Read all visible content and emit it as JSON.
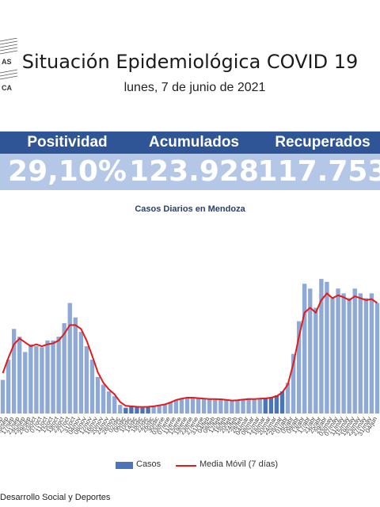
{
  "header": {
    "title": "Situación Epidemiológica COVID 19",
    "date": "lunes, 7 de junio de 2021",
    "logo_text": [
      "AS",
      "CA"
    ]
  },
  "stats": [
    {
      "label": "Positividad",
      "value": "29,10%"
    },
    {
      "label": "Acumulados",
      "value": "123.928"
    },
    {
      "label": "Recuperados",
      "value": "117.753"
    }
  ],
  "colors": {
    "band": "#2f5596",
    "band_light": "#b4c7e7",
    "bars": "#8ea9d6",
    "bars_recent": "#4a76b8",
    "line": "#e31b1b"
  },
  "chart_data": {
    "type": "bar",
    "title": "Casos Diarios en Mendoza",
    "x": [
      "09/sep",
      "13/sep",
      "17/sep",
      "21/sep",
      "25/sep",
      "29/sep",
      "03/oct",
      "07/oct",
      "11/oct",
      "15/oct",
      "19/oct",
      "23/oct",
      "27/oct",
      "31/oct",
      "04/nov",
      "08/nov",
      "12/nov",
      "16/nov",
      "20/nov",
      "24/nov",
      "28/nov",
      "02/dic",
      "06/dic",
      "10/dic",
      "14/dic",
      "18/dic",
      "22/dic",
      "26/dic",
      "30/dic",
      "03/ene",
      "07/ene",
      "11/ene",
      "15/ene",
      "19/ene",
      "23/ene",
      "27/ene",
      "31/ene",
      "04/feb",
      "08/feb",
      "12/feb",
      "16/feb",
      "20/feb",
      "24/feb",
      "28/feb",
      "04/mar",
      "08/mar",
      "12/mar",
      "16/mar",
      "20/mar",
      "24/mar",
      "28/mar",
      "01/abr",
      "05/abr",
      "09/abr",
      "13/abr",
      "17/abr",
      "21/abr",
      "25/abr",
      "29/abr",
      "03/may",
      "07/may",
      "11/may",
      "15/may",
      "19/may",
      "23/may",
      "27/may",
      "31/may",
      "04/jun"
    ],
    "series": [
      {
        "name": "Casos",
        "values": [
          350,
          560,
          880,
          800,
          640,
          720,
          700,
          690,
          760,
          760,
          800,
          940,
          1150,
          1000,
          850,
          700,
          560,
          380,
          300,
          230,
          180,
          90,
          60,
          70,
          70,
          60,
          65,
          70,
          80,
          90,
          120,
          140,
          160,
          170,
          170,
          165,
          150,
          150,
          155,
          150,
          140,
          130,
          140,
          150,
          160,
          150,
          160,
          160,
          170,
          190,
          230,
          320,
          620,
          960,
          1350,
          1300,
          1100,
          1400,
          1370,
          1200,
          1300,
          1250,
          1200,
          1300,
          1250,
          1200,
          1250,
          1150
        ]
      },
      {
        "name": "Media Móvil (7 días)",
        "values": [
          420,
          580,
          720,
          780,
          740,
          700,
          720,
          700,
          720,
          730,
          760,
          830,
          920,
          920,
          880,
          760,
          600,
          430,
          320,
          250,
          200,
          120,
          80,
          75,
          70,
          68,
          70,
          75,
          85,
          95,
          115,
          140,
          155,
          165,
          165,
          160,
          155,
          150,
          150,
          148,
          142,
          135,
          138,
          145,
          150,
          150,
          155,
          158,
          165,
          180,
          220,
          300,
          520,
          800,
          1050,
          1100,
          1050,
          1180,
          1250,
          1200,
          1230,
          1210,
          1180,
          1220,
          1200,
          1180,
          1190,
          1150
        ]
      }
    ],
    "legend": [
      "Casos",
      "Media Móvil (7 días)"
    ],
    "legend_position": "bottom",
    "xlabel": "",
    "ylabel": ""
  },
  "footer": {
    "text": "Desarrollo Social y Deportes"
  }
}
